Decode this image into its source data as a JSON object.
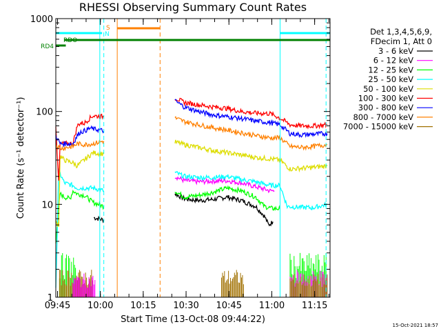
{
  "chart_data": {
    "type": "line",
    "title": "RHESSI Observing Summary Count Rates",
    "xlabel": "Start Time (13-Oct-08 09:44:22)",
    "ylabel": "Count Rate (s⁻¹ detector⁻¹)",
    "yscale": "log",
    "ylim": [
      1,
      1000
    ],
    "xlim_minutes": [
      0,
      96
    ],
    "x_ticks": [
      {
        "label": "09:45",
        "t": 0.6
      },
      {
        "label": "10:00",
        "t": 15.6
      },
      {
        "label": "10:15",
        "t": 30.6
      },
      {
        "label": "10:30",
        "t": 45.6
      },
      {
        "label": "10:45",
        "t": 60.6
      },
      {
        "label": "11:00",
        "t": 75.6
      },
      {
        "label": "11:15",
        "t": 90.6
      }
    ],
    "y_ticks": [
      {
        "label": "1",
        "v": 1
      },
      {
        "label": "10",
        "v": 10
      },
      {
        "label": "100",
        "v": 100
      },
      {
        "label": "1000",
        "v": 1000
      }
    ],
    "legend_header": [
      "Det 1,3,4,5,6,9,",
      "FDecim 1, Att 0"
    ],
    "series": [
      {
        "name": "3 - 6 keV",
        "color": "#000000",
        "points": [
          [
            13.3,
            7.2
          ],
          [
            15,
            7.0
          ],
          [
            16.8,
            6.8
          ],
          [
            41.7,
            13
          ],
          [
            45,
            11.5
          ],
          [
            50,
            11
          ],
          [
            55,
            11.3
          ],
          [
            60,
            12
          ],
          [
            65,
            11
          ],
          [
            70,
            9.5
          ],
          [
            73,
            7.5
          ],
          [
            74.5,
            6.0
          ],
          [
            76,
            6.5
          ]
        ]
      },
      {
        "name": "6 - 12 keV",
        "color": "#ff00ff",
        "points": [
          [
            41.7,
            20
          ],
          [
            45,
            18
          ],
          [
            50,
            17.5
          ],
          [
            55,
            17.8
          ],
          [
            60,
            18
          ],
          [
            65,
            17
          ],
          [
            70,
            15.5
          ],
          [
            75,
            14
          ],
          [
            76.5,
            14
          ]
        ]
      },
      {
        "name": "12 - 25 keV",
        "color": "#00ff00",
        "points": [
          [
            0,
            4
          ],
          [
            1,
            9
          ],
          [
            1.5,
            13
          ],
          [
            3,
            12
          ],
          [
            5,
            11.5
          ],
          [
            6,
            14
          ],
          [
            7.5,
            13
          ],
          [
            10,
            12.5
          ],
          [
            13,
            10.5
          ],
          [
            15,
            10
          ],
          [
            16.8,
            9.5
          ],
          [
            41.7,
            14
          ],
          [
            45,
            12
          ],
          [
            50,
            12.5
          ],
          [
            55,
            13.5
          ],
          [
            60,
            15
          ],
          [
            65,
            14
          ],
          [
            70,
            12
          ],
          [
            73,
            9.5
          ],
          [
            76,
            9
          ],
          [
            78.5,
            9
          ]
        ]
      },
      {
        "name": "25 - 50 keV",
        "color": "#00ffff",
        "points": [
          [
            0,
            1.2
          ],
          [
            1,
            23
          ],
          [
            3,
            17
          ],
          [
            6,
            16
          ],
          [
            7.5,
            15
          ],
          [
            13,
            15
          ],
          [
            15,
            14.5
          ],
          [
            16.8,
            14
          ],
          [
            41.7,
            22
          ],
          [
            45,
            20
          ],
          [
            50,
            19.5
          ],
          [
            55,
            19.5
          ],
          [
            60,
            20
          ],
          [
            65,
            18.5
          ],
          [
            70,
            17.5
          ],
          [
            75,
            16
          ],
          [
            78.5,
            16
          ],
          [
            81,
            9.5
          ],
          [
            86,
            9.3
          ],
          [
            90,
            9.2
          ],
          [
            92,
            9.5
          ],
          [
            95,
            10
          ]
        ]
      },
      {
        "name": "50 - 100 keV",
        "color": "#dddd00",
        "points": [
          [
            0,
            6.5
          ],
          [
            1,
            6
          ],
          [
            1.5,
            33
          ],
          [
            3,
            30
          ],
          [
            6,
            28
          ],
          [
            7.5,
            26
          ],
          [
            13,
            36
          ],
          [
            16.8,
            35
          ],
          [
            41.7,
            47
          ],
          [
            45,
            44
          ],
          [
            50,
            41
          ],
          [
            55,
            38
          ],
          [
            60,
            36
          ],
          [
            65,
            34
          ],
          [
            70,
            32
          ],
          [
            75,
            31
          ],
          [
            78.5,
            30
          ],
          [
            82,
            24
          ],
          [
            86,
            24.5
          ],
          [
            90,
            25
          ],
          [
            95,
            26
          ]
        ]
      },
      {
        "name": "100 - 300 keV",
        "color": "#ff0000",
        "points": [
          [
            0,
            72
          ],
          [
            1,
            17
          ],
          [
            1.5,
            45
          ],
          [
            6,
            45
          ],
          [
            7.5,
            70
          ],
          [
            8.5,
            75
          ],
          [
            10,
            75
          ],
          [
            12,
            85
          ],
          [
            13,
            90
          ],
          [
            16.8,
            88
          ],
          [
            41.7,
            140
          ],
          [
            45,
            125
          ],
          [
            50,
            118
          ],
          [
            55,
            112
          ],
          [
            60,
            108
          ],
          [
            65,
            100
          ],
          [
            70,
            96
          ],
          [
            75,
            95
          ],
          [
            78.5,
            85
          ],
          [
            82,
            72
          ],
          [
            86,
            70
          ],
          [
            90,
            70
          ],
          [
            95,
            72
          ]
        ]
      },
      {
        "name": "300 - 800 keV",
        "color": "#0000ff",
        "points": [
          [
            0,
            55
          ],
          [
            1.5,
            45
          ],
          [
            6,
            45
          ],
          [
            7.5,
            55
          ],
          [
            8.5,
            60
          ],
          [
            10,
            62
          ],
          [
            12,
            66
          ],
          [
            13,
            65
          ],
          [
            16.8,
            62
          ],
          [
            41.7,
            130
          ],
          [
            45,
            112
          ],
          [
            50,
            100
          ],
          [
            55,
            92
          ],
          [
            60,
            88
          ],
          [
            65,
            84
          ],
          [
            70,
            79
          ],
          [
            75,
            76
          ],
          [
            78.5,
            72
          ],
          [
            82,
            58
          ],
          [
            86,
            56
          ],
          [
            90,
            57
          ],
          [
            95,
            58
          ]
        ]
      },
      {
        "name": "800 - 7000 keV",
        "color": "#ff8000",
        "points": [
          [
            0,
            44
          ],
          [
            1.5,
            40
          ],
          [
            6,
            42
          ],
          [
            7.5,
            45
          ],
          [
            10,
            44
          ],
          [
            13,
            45
          ],
          [
            16.8,
            48
          ],
          [
            41.7,
            85
          ],
          [
            45,
            78
          ],
          [
            50,
            72
          ],
          [
            55,
            67
          ],
          [
            60,
            63
          ],
          [
            65,
            59
          ],
          [
            70,
            55
          ],
          [
            75,
            52
          ],
          [
            78.5,
            52
          ],
          [
            82,
            42
          ],
          [
            86,
            41
          ],
          [
            90,
            42
          ],
          [
            95,
            44
          ]
        ]
      },
      {
        "name": "7000 - 15000 keV",
        "color": "#a07000",
        "points": []
      }
    ],
    "flag_lines": [
      {
        "label": "RD4",
        "color": "#008000"
      },
      {
        "label": "RDO",
        "color": "#008000"
      },
      {
        "label": "S",
        "color": "#ff8000"
      },
      {
        "label": "N",
        "color": "#00ffff"
      }
    ]
  },
  "timestamp": "15-Oct-2021 18:57"
}
